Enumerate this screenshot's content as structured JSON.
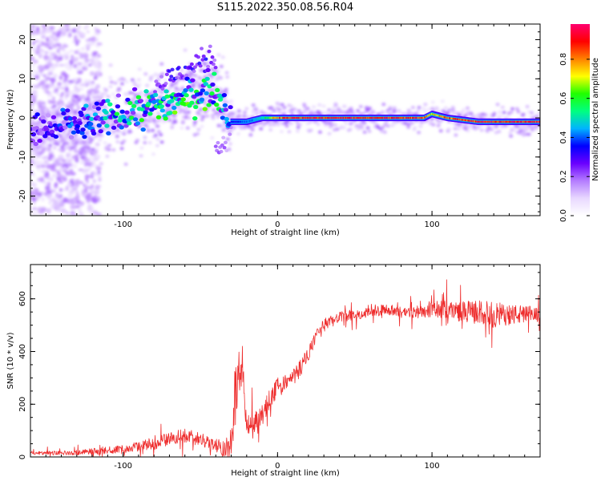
{
  "title": "S115.2022.350.08.56.R04",
  "chart_data": [
    {
      "type": "heatmap",
      "title": "S115.2022.350.08.56.R04",
      "xlabel": "Height of straight line (km)",
      "ylabel": "Frequency (Hz)",
      "xlim": [
        -160,
        170
      ],
      "ylim": [
        -25,
        24
      ],
      "x_ticks": [
        -100,
        0,
        100
      ],
      "x_tick_labels": [
        "-100",
        "0",
        "100"
      ],
      "y_ticks": [
        -20,
        -10,
        0,
        10,
        20
      ],
      "y_tick_labels": [
        "-20",
        "-10",
        "0",
        "10",
        "20"
      ],
      "colorbar": {
        "label": "Normalized spectral amplitude",
        "range": [
          0.0,
          0.98
        ],
        "ticks": [
          0.0,
          0.2,
          0.4,
          0.6,
          0.8
        ],
        "tick_labels": [
          "0.0",
          "0.2",
          "0.4",
          "0.6",
          "0.8"
        ],
        "colormap": [
          "#ffffff",
          "#e8d8ff",
          "#b47cff",
          "#6a00ff",
          "#0000ff",
          "#00b4ff",
          "#00ff80",
          "#20ff00",
          "#ffff00",
          "#ff8000",
          "#ff0000",
          "#ff0070"
        ]
      },
      "ridge": {
        "x": [
          -160,
          -140,
          -120,
          -100,
          -80,
          -60,
          -45,
          -40,
          -35,
          -30,
          -20,
          -10,
          0,
          20,
          40,
          60,
          80,
          95,
          100,
          110,
          120,
          130,
          150,
          170
        ],
        "frequency": [
          -4,
          -2,
          -1,
          1,
          3,
          5,
          7,
          7,
          4,
          -1,
          -1,
          0,
          0,
          0,
          0,
          0,
          0,
          0,
          1,
          0,
          -0.5,
          -1,
          -1,
          -1
        ],
        "amplitude": [
          0.25,
          0.3,
          0.35,
          0.45,
          0.45,
          0.5,
          0.5,
          0.45,
          0.4,
          0.35,
          0.45,
          0.5,
          0.9,
          0.95,
          0.95,
          0.95,
          0.95,
          0.9,
          0.75,
          0.9,
          0.9,
          0.95,
          0.95,
          0.95
        ]
      },
      "branches": [
        {
          "x": [
            -80,
            -60,
            -50,
            -40
          ],
          "frequency": [
            8,
            12,
            14,
            16
          ],
          "amplitude": 0.3
        },
        {
          "x": [
            -40,
            -35,
            -30
          ],
          "frequency": [
            -8,
            -6,
            -3
          ],
          "amplitude": 0.2
        }
      ],
      "grid": false
    },
    {
      "type": "line",
      "xlabel": "Height of straight line (km)",
      "ylabel": "SNR (10 * v/v)",
      "xlim": [
        -160,
        170
      ],
      "ylim": [
        0,
        730
      ],
      "x_ticks": [
        -100,
        0,
        100
      ],
      "x_tick_labels": [
        "-100",
        "0",
        "100"
      ],
      "y_ticks": [
        0,
        200,
        400,
        600
      ],
      "y_tick_labels": [
        "0",
        "200",
        "400",
        "600"
      ],
      "series": [
        {
          "color": "#ee2c2c",
          "x": [
            -160,
            -140,
            -120,
            -100,
            -90,
            -80,
            -70,
            -60,
            -50,
            -40,
            -35,
            -30,
            -28,
            -25,
            -22,
            -20,
            -15,
            -10,
            -5,
            0,
            5,
            10,
            15,
            20,
            25,
            30,
            40,
            50,
            60,
            70,
            80,
            90,
            100,
            110,
            120,
            130,
            140,
            150,
            160,
            170
          ],
          "values": [
            15,
            15,
            20,
            30,
            40,
            50,
            70,
            80,
            70,
            40,
            30,
            60,
            200,
            350,
            250,
            120,
            130,
            160,
            220,
            260,
            280,
            300,
            340,
            390,
            450,
            500,
            530,
            540,
            550,
            560,
            550,
            550,
            560,
            560,
            550,
            550,
            540,
            540,
            540,
            540
          ],
          "noise": [
            15,
            15,
            25,
            30,
            40,
            45,
            50,
            55,
            50,
            40,
            60,
            120,
            250,
            180,
            150,
            80,
            80,
            80,
            80,
            80,
            70,
            70,
            70,
            60,
            60,
            50,
            40,
            40,
            40,
            40,
            40,
            50,
            60,
            70,
            80,
            90,
            100,
            80,
            70,
            60
          ]
        }
      ],
      "grid": false
    }
  ]
}
